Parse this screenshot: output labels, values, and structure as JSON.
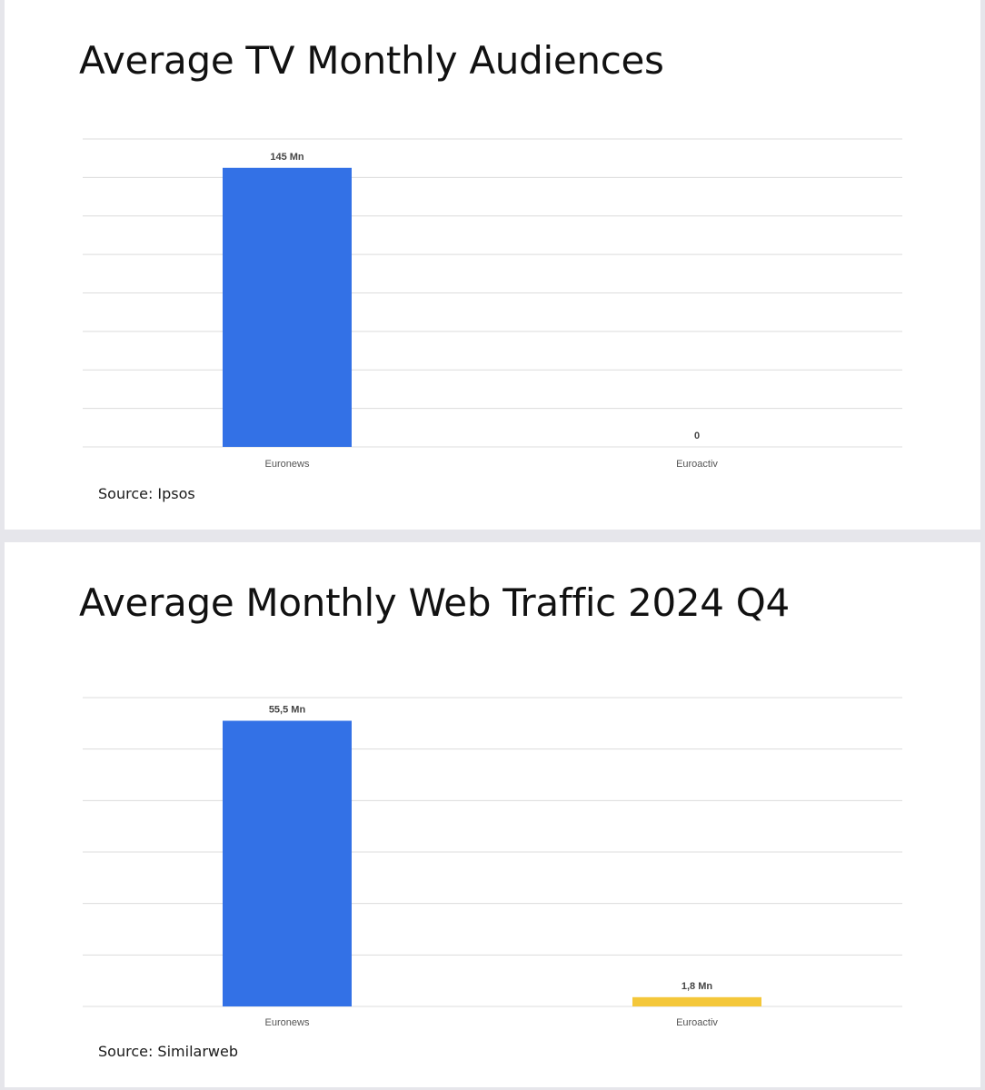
{
  "colors": {
    "euronews": "#3371e6",
    "euroactiv": "#f4c73a",
    "grid": "#dcdcdc",
    "label": "#444444"
  },
  "charts": [
    {
      "title": "Average TV Monthly Audiences",
      "source": "Source: Ipsos"
    },
    {
      "title": "Average Monthly Web Traffic 2024 Q4",
      "source": "Source: Similarweb"
    }
  ],
  "chart_data": [
    {
      "type": "bar",
      "title": "Average TV Monthly Audiences",
      "categories": [
        "Euronews",
        "Euroactiv"
      ],
      "values": [
        145,
        0
      ],
      "data_labels": [
        "145 Mn",
        "0"
      ],
      "unit": "Mn",
      "ylim": [
        0,
        160
      ],
      "gridlines": 8,
      "xlabel": "",
      "ylabel": "",
      "bar_colors": [
        "#3371e6",
        "#f4c73a"
      ],
      "legend": "none"
    },
    {
      "type": "bar",
      "title": "Average Monthly Web Traffic 2024 Q4",
      "categories": [
        "Euronews",
        "Euroactiv"
      ],
      "values": [
        55.5,
        1.8
      ],
      "data_labels": [
        "55,5 Mn",
        "1,8 Mn"
      ],
      "unit": "Mn",
      "ylim": [
        0,
        60
      ],
      "gridlines": 6,
      "xlabel": "",
      "ylabel": "",
      "bar_colors": [
        "#3371e6",
        "#f4c73a"
      ],
      "legend": "none"
    }
  ]
}
